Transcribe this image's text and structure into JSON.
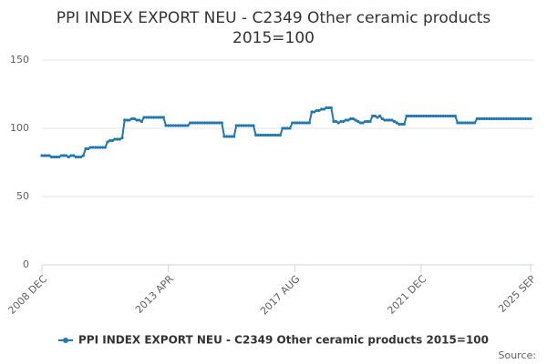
{
  "chart_data": {
    "type": "line",
    "title": [
      "PPI INDEX EXPORT NEU - C2349 Other ceramic products",
      "2015=100"
    ],
    "source_label": "Source:",
    "categories": [
      "2008 DEC",
      null,
      null,
      null,
      null,
      null,
      null,
      null,
      null,
      null,
      null,
      null,
      null,
      null,
      null,
      null,
      null,
      null,
      null,
      null,
      null,
      null,
      null,
      null,
      null,
      null,
      null,
      null,
      null,
      null,
      null,
      null,
      null,
      null,
      null,
      null,
      null,
      null,
      null,
      null,
      null,
      null,
      null,
      null,
      null,
      null,
      null,
      null,
      null,
      null,
      null,
      null,
      "2013 APR",
      null,
      null,
      null,
      null,
      null,
      null,
      null,
      null,
      null,
      null,
      null,
      null,
      null,
      null,
      null,
      null,
      null,
      null,
      null,
      null,
      null,
      null,
      null,
      null,
      null,
      null,
      null,
      null,
      null,
      null,
      null,
      null,
      null,
      null,
      null,
      null,
      null,
      null,
      null,
      null,
      null,
      null,
      null,
      null,
      null,
      null,
      null,
      null,
      null,
      null,
      null,
      "2017 AUG",
      null,
      null,
      null,
      null,
      null,
      null,
      null,
      null,
      null,
      null,
      null,
      null,
      null,
      null,
      null,
      null,
      null,
      null,
      null,
      null,
      null,
      null,
      null,
      null,
      null,
      null,
      null,
      null,
      null,
      null,
      null,
      null,
      null,
      null,
      null,
      null,
      null,
      null,
      null,
      null,
      null,
      null,
      null,
      null,
      null,
      null,
      null,
      null,
      null,
      null,
      null,
      "2021 DEC",
      null,
      null,
      null,
      null,
      null,
      null,
      null,
      null,
      null,
      null,
      null,
      null,
      null,
      null,
      null,
      null,
      null,
      null,
      null,
      null,
      null,
      null,
      null,
      null,
      null,
      null,
      null,
      null,
      null,
      null,
      null,
      null,
      null,
      null,
      null,
      null,
      null,
      null,
      null,
      null,
      null,
      null,
      null,
      null,
      "2025 SEP"
    ],
    "series": [
      {
        "name": "PPI INDEX EXPORT NEU - C2349 Other ceramic products 2015=100",
        "color": "#1f78b4",
        "values": [
          80,
          80,
          80,
          80,
          79,
          79,
          79,
          79,
          80,
          80,
          80,
          79,
          80,
          80,
          79,
          79,
          79,
          80,
          85,
          85,
          86,
          86,
          86,
          86,
          86,
          86,
          86,
          90,
          91,
          91,
          92,
          92,
          92,
          93,
          106,
          106,
          106,
          107,
          107,
          106,
          106,
          105,
          108,
          108,
          108,
          108,
          108,
          108,
          108,
          108,
          108,
          102,
          102,
          102,
          102,
          102,
          102,
          102,
          102,
          102,
          102,
          104,
          104,
          104,
          104,
          104,
          104,
          104,
          104,
          104,
          104,
          104,
          104,
          104,
          104,
          94,
          94,
          94,
          94,
          94,
          102,
          102,
          102,
          102,
          102,
          102,
          102,
          102,
          95,
          95,
          95,
          95,
          95,
          95,
          95,
          95,
          95,
          95,
          95,
          100,
          100,
          100,
          100,
          104,
          104,
          104,
          104,
          104,
          104,
          104,
          104,
          112,
          112,
          113,
          113,
          114,
          114,
          115,
          115,
          115,
          105,
          105,
          104,
          105,
          105,
          106,
          106,
          107,
          107,
          106,
          105,
          104,
          104,
          105,
          105,
          105,
          109,
          109,
          108,
          109,
          107,
          106,
          106,
          106,
          106,
          105,
          104,
          103,
          103,
          103,
          109,
          109,
          109,
          109,
          109,
          109,
          109,
          109,
          109,
          109,
          109,
          109,
          109,
          109,
          109,
          109,
          109,
          109,
          109,
          109,
          109,
          104,
          104,
          104,
          104,
          104,
          104,
          104,
          104,
          107,
          107,
          107,
          107,
          107,
          107,
          107,
          107,
          107,
          107,
          107,
          107,
          107,
          107,
          107,
          107,
          107,
          107,
          107,
          107,
          107,
          107,
          107
        ]
      }
    ],
    "ylim": [
      0,
      150
    ],
    "yticks": [
      0,
      50,
      100,
      150
    ],
    "grid": true
  }
}
